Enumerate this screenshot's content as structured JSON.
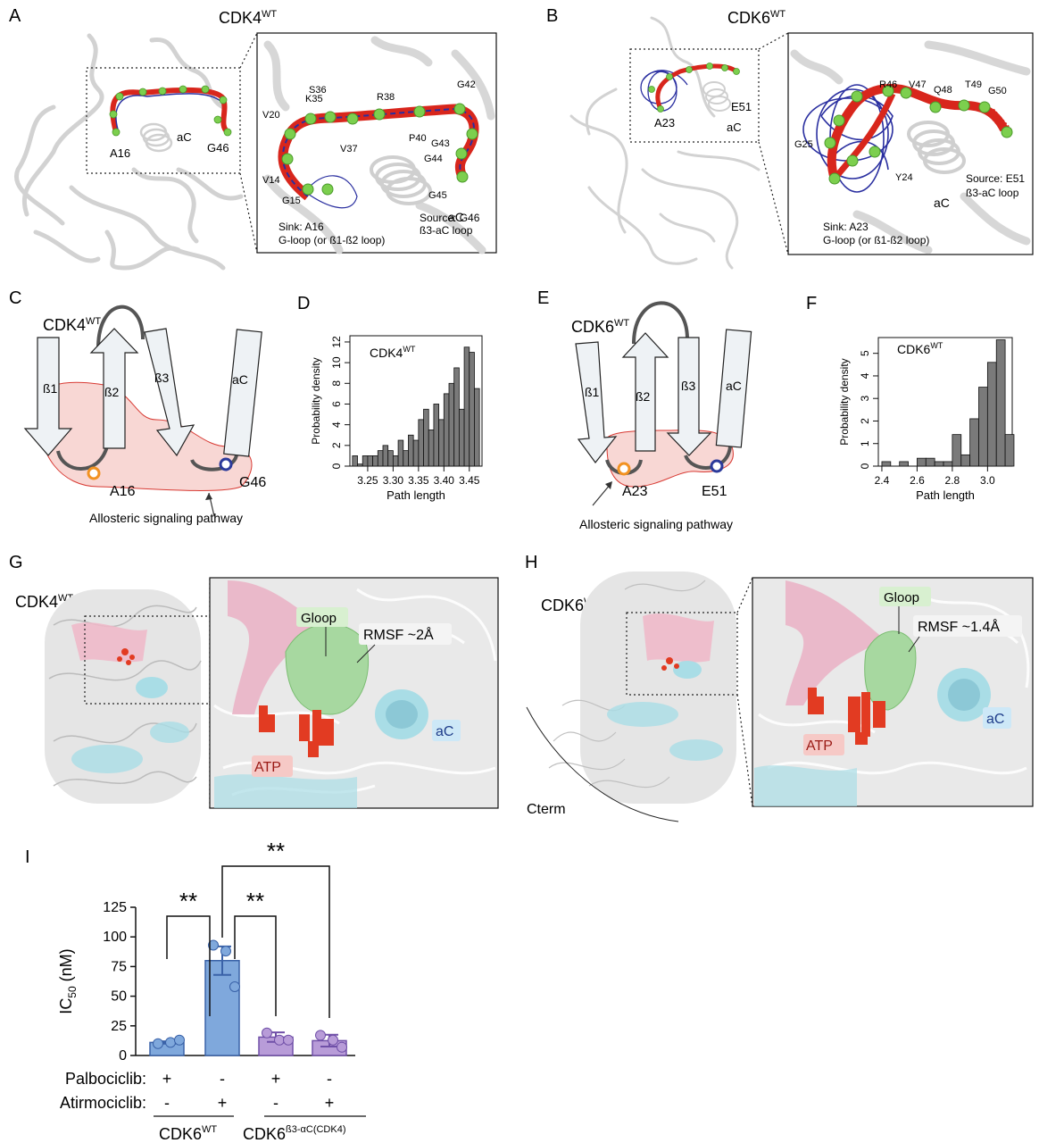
{
  "panels": {
    "A": {
      "letter": "A",
      "title": "CDK4",
      "title_sup": "WT",
      "overview": {
        "sink": "A16",
        "source": "G46",
        "helix": "aC"
      },
      "zoom": {
        "helix": "aC",
        "residues": [
          "K35",
          "S36",
          "R38",
          "G42",
          "V20",
          "V37",
          "P40",
          "G43",
          "G44",
          "G45",
          "V14",
          "G15"
        ],
        "sink_line1": "Sink: A16",
        "sink_line2": "G-loop (or ß1-ß2 loop)",
        "source_line1": "Source: G46",
        "source_line2": "ß3-aC loop"
      }
    },
    "B": {
      "letter": "B",
      "title": "CDK6",
      "title_sup": "WT",
      "overview": {
        "sink": "A23",
        "source": "E51",
        "helix": "aC"
      },
      "zoom": {
        "helix": "aC",
        "residues": [
          "R46",
          "V47",
          "Q48",
          "T49",
          "G50",
          "G25",
          "Y24"
        ],
        "sink_line1": "Sink: A23",
        "sink_line2": "G-loop (or ß1-ß2 loop)",
        "source_line1": "Source: E51",
        "source_line2": "ß3-aC loop"
      }
    },
    "C": {
      "letter": "C",
      "title": "CDK4",
      "title_sup": "WT",
      "strands": [
        "ß1",
        "ß2",
        "ß3",
        "aC"
      ],
      "sink": "A16",
      "source": "G46",
      "pathway_label": "Allosteric signaling pathway"
    },
    "E": {
      "letter": "E",
      "title": "CDK6",
      "title_sup": "WT",
      "strands": [
        "ß1",
        "ß2",
        "ß3",
        "aC"
      ],
      "sink": "A23",
      "source": "E51",
      "pathway_label": "Allosteric signaling pathway"
    },
    "G": {
      "letter": "G",
      "title": "CDK4",
      "title_sup": "WT",
      "labels": {
        "gloop": "Gloop",
        "rmsf": "RMSF ~2Å",
        "helix": "aC",
        "ligand": "ATP"
      }
    },
    "H": {
      "letter": "H",
      "title": "CDK6",
      "title_sup": "WT",
      "labels": {
        "gloop": "Gloop",
        "rmsf": "RMSF ~1.4Å",
        "helix": "aC",
        "ligand": "ATP",
        "cterm": "Cterm"
      }
    }
  },
  "chart_data": [
    {
      "panel": "D",
      "type": "bar",
      "subtype": "histogram",
      "legend_text": "CDK4",
      "legend_sup": "WT",
      "xlabel": "Path length",
      "ylabel": "Probability density",
      "xlim": [
        3.215,
        3.475
      ],
      "ylim": [
        0,
        12.6
      ],
      "xticks": [
        3.25,
        3.3,
        3.35,
        3.4,
        3.45
      ],
      "xtick_labels": [
        "3.25",
        "3.30",
        "3.35",
        "3.40",
        "3.45"
      ],
      "yticks": [
        0,
        2,
        4,
        6,
        8,
        10,
        12
      ],
      "bin_width": 0.01,
      "bin_starts": [
        3.22,
        3.23,
        3.24,
        3.25,
        3.26,
        3.27,
        3.28,
        3.29,
        3.3,
        3.31,
        3.32,
        3.33,
        3.34,
        3.35,
        3.36,
        3.37,
        3.38,
        3.39,
        3.4,
        3.41,
        3.42,
        3.43,
        3.44,
        3.45,
        3.46
      ],
      "values": [
        1.0,
        0.2,
        1.0,
        1.0,
        1.0,
        1.5,
        2.0,
        1.5,
        1.0,
        2.5,
        1.5,
        3.0,
        2.5,
        4.5,
        5.5,
        3.5,
        6.0,
        4.5,
        7.0,
        8.0,
        9.5,
        5.5,
        11.5,
        11.0,
        7.5
      ]
    },
    {
      "panel": "F",
      "type": "bar",
      "subtype": "histogram",
      "legend_text": "CDK6",
      "legend_sup": "WT",
      "xlabel": "Path length",
      "ylabel": "Probability density",
      "xlim": [
        2.38,
        3.14
      ],
      "ylim": [
        0,
        5.7
      ],
      "xticks": [
        2.4,
        2.6,
        2.8,
        3.0
      ],
      "xtick_labels": [
        "2.4",
        "2.6",
        "2.8",
        "3.0"
      ],
      "yticks": [
        0,
        1,
        2,
        3,
        4,
        5
      ],
      "bin_width": 0.05,
      "bin_starts": [
        2.4,
        2.45,
        2.5,
        2.55,
        2.6,
        2.65,
        2.7,
        2.75,
        2.8,
        2.85,
        2.9,
        2.95,
        3.0,
        3.05,
        3.1
      ],
      "values": [
        0.2,
        0.0,
        0.2,
        0.0,
        0.35,
        0.35,
        0.2,
        0.2,
        1.4,
        0.5,
        2.1,
        3.5,
        4.6,
        5.6,
        1.4
      ]
    },
    {
      "panel": "I",
      "type": "bar",
      "ylabel": "IC",
      "ylabel_sub": "50",
      "ylabel_unit": " (nM)",
      "ylim": [
        0,
        125
      ],
      "yticks": [
        0,
        25,
        50,
        75,
        100,
        125
      ],
      "categories": [
        "1",
        "2",
        "3",
        "4"
      ],
      "values": [
        11,
        80,
        15.5,
        12.5
      ],
      "errors": [
        1.0,
        12.0,
        4.0,
        5.0
      ],
      "points": [
        [
          10,
          11,
          13
        ],
        [
          93,
          88,
          58
        ],
        [
          19,
          13,
          13
        ],
        [
          17,
          13,
          7
        ]
      ],
      "colors": [
        "#7fa8dc",
        "#7fa8dc",
        "#b89cd8",
        "#b89cd8"
      ],
      "edge_colors": [
        "#3a62a8",
        "#3a62a8",
        "#7050a8",
        "#7050a8"
      ],
      "row_labels": [
        "Palbociclib:",
        "Atirmociclib:"
      ],
      "palbociclib": [
        "+",
        "-",
        "+",
        "-"
      ],
      "atirmociclib": [
        "-",
        "+",
        "-",
        "+"
      ],
      "group1_label": "CDK6",
      "group1_sup": "WT",
      "group2_label": "CDK6",
      "group2_sup": "ß3-αC(CDK4)",
      "significance": [
        {
          "from": 0,
          "to": 1,
          "label": "**"
        },
        {
          "from": 1,
          "to": 2,
          "label": "**"
        },
        {
          "from": 1,
          "to": 3,
          "label": "**"
        }
      ]
    }
  ],
  "panel_I_letter": "I",
  "panel_D_letter": "D",
  "panel_F_letter": "F",
  "colors": {
    "path_red": "#d8261c",
    "path_blue": "#2a2fa0",
    "node_green": "#7ccf4e",
    "pink": "#f6c9c6",
    "cyan": "#a9dde6",
    "gloop_green": "#a7d8a0",
    "sink_orange": "#f29222",
    "source_blue": "#2b3a9b"
  }
}
